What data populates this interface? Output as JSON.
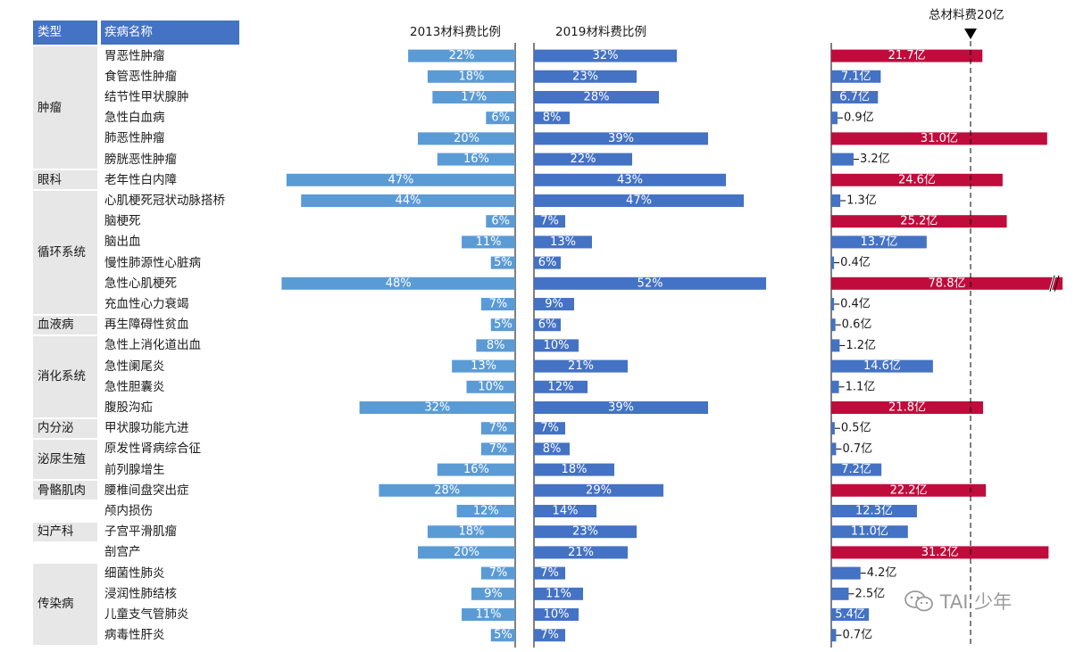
{
  "header": {
    "type_label": "类型",
    "disease_label": "疾病名称"
  },
  "threshold": {
    "label": "总材料费20亿",
    "value": 20,
    "marker": "down-triangle-icon"
  },
  "watermark": {
    "icon": "wechat-icon",
    "text": "TAI 少年"
  },
  "colors": {
    "header_bg": "#4472c4",
    "bar_2013": "#5b9bd5",
    "bar_2019": "#4472c4",
    "cost_normal": "#4472c4",
    "cost_high": "#c00c3c",
    "category_bg": "#e7e7e7"
  },
  "categories": [
    {
      "name": "肿瘤",
      "rows": 6
    },
    {
      "name": "眼科",
      "rows": 1
    },
    {
      "name": "循环系统",
      "rows": 6
    },
    {
      "name": "血液病",
      "rows": 1
    },
    {
      "name": "消化系统",
      "rows": 4
    },
    {
      "name": "内分泌",
      "rows": 1
    },
    {
      "name": "泌尿生殖",
      "rows": 2
    },
    {
      "name": "骨骼肌肉",
      "rows": 1
    },
    {
      "name": "",
      "rows": 1
    },
    {
      "name": "妇产科",
      "rows": 1
    },
    {
      "name": "",
      "rows": 1
    },
    {
      "name": "传染病",
      "rows": 4
    }
  ],
  "chart_data": {
    "type": "bar",
    "orientation": "horizontal",
    "categories": [
      "胃恶性肿瘤",
      "食管恶性肿瘤",
      "结节性甲状腺肿",
      "急性白血病",
      "肺恶性肿瘤",
      "膀胱恶性肿瘤",
      "老年性白内障",
      "心肌梗死冠状动脉搭桥",
      "脑梗死",
      "脑出血",
      "慢性肺源性心脏病",
      "急性心肌梗死",
      "充血性心力衰竭",
      "再生障碍性贫血",
      "急性上消化道出血",
      "急性阑尾炎",
      "急性胆囊炎",
      "腹股沟疝",
      "甲状腺功能亢进",
      "原发性肾病综合征",
      "前列腺增生",
      "腰椎间盘突出症",
      "颅内损伤",
      "子宫平滑肌瘤",
      "剖宫产",
      "细菌性肺炎",
      "浸润性肺结核",
      "儿童支气管肺炎",
      "病毒性肝炎"
    ],
    "series": [
      {
        "name": "2013材料费比例",
        "values": [
          22,
          18,
          17,
          6,
          20,
          16,
          47,
          44,
          6,
          11,
          5,
          48,
          7,
          5,
          8,
          13,
          10,
          32,
          7,
          7,
          16,
          28,
          12,
          18,
          20,
          7,
          9,
          11,
          5
        ],
        "labels": [
          "22%",
          "18%",
          "17%",
          "6%",
          "20%",
          "16%",
          "47%",
          "44%",
          "6%",
          "11%",
          "5%",
          "48%",
          "7%",
          "5%",
          "8%",
          "13%",
          "10%",
          "32%",
          "7%",
          "7%",
          "16%",
          "28%",
          "12%",
          "18%",
          "20%",
          "7%",
          "9%",
          "11%",
          "5%"
        ]
      },
      {
        "name": "2019材料费比例",
        "values": [
          32,
          23,
          28,
          8,
          39,
          22,
          43,
          47,
          7,
          13,
          6,
          52,
          9,
          6,
          10,
          21,
          12,
          39,
          7,
          8,
          18,
          29,
          14,
          23,
          21,
          7,
          11,
          10,
          7
        ],
        "labels": [
          "32%",
          "23%",
          "28%",
          "8%",
          "39%",
          "22%",
          "43%",
          "47%",
          "7%",
          "13%",
          "6%",
          "52%",
          "9%",
          "6%",
          "10%",
          "21%",
          "12%",
          "39%",
          "7%",
          "8%",
          "18%",
          "29%",
          "14%",
          "23%",
          "21%",
          "7%",
          "11%",
          "10%",
          "7%"
        ]
      },
      {
        "name": "总材料费",
        "unit": "亿",
        "values": [
          21.7,
          7.1,
          6.7,
          0.9,
          31.0,
          3.2,
          24.6,
          1.3,
          25.2,
          13.7,
          0.4,
          78.8,
          0.4,
          0.6,
          1.2,
          14.6,
          1.1,
          21.8,
          0.5,
          0.7,
          7.2,
          22.2,
          12.3,
          11.0,
          31.2,
          4.2,
          2.5,
          5.4,
          0.7
        ],
        "labels": [
          "21.7亿",
          "7.1亿",
          "6.7亿",
          "0.9亿",
          "31.0亿",
          "3.2亿",
          "24.6亿",
          "1.3亿",
          "25.2亿",
          "13.7亿",
          "0.4亿",
          "78.8亿",
          "0.4亿",
          "0.6亿",
          "1.2亿",
          "14.6亿",
          "1.1亿",
          "21.8亿",
          "0.5亿",
          "0.7亿",
          "7.2亿",
          "22.2亿",
          "12.3亿",
          "11.0亿",
          "31.2亿",
          "4.2亿",
          "2.5亿",
          "5.4亿",
          "0.7亿"
        ],
        "axis_break": true
      }
    ],
    "xlim_2013": [
      0,
      55
    ],
    "xlim_2019": [
      0,
      55
    ],
    "xlim_cost": [
      0,
      33
    ],
    "grid": false,
    "legend": "none"
  }
}
